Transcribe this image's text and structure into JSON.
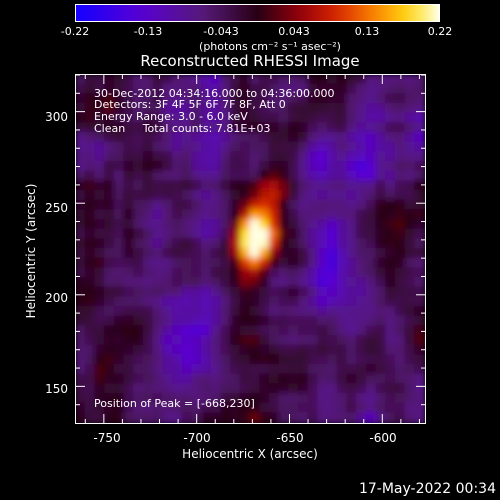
{
  "colorbar": {
    "tick_labels": [
      "-0.22",
      "-0.13",
      "-0.043",
      "0.043",
      "0.13",
      "0.22"
    ],
    "unit_label": "(photons cm⁻² s⁻¹ asec⁻²)",
    "vmin": -0.22,
    "vmax": 0.22
  },
  "title": "Reconstructed RHESSI Image",
  "annotations": {
    "time_range": "30-Dec-2012 04:34:16.000 to 04:36:00.000",
    "detectors": "Detectors: 3F 4F 5F 6F 7F 8F, Att 0",
    "energy_range": "Energy Range: 3.0 - 6.0 keV",
    "method_counts": "Clean     Total counts: 7.81E+03",
    "peak_position": "Position of Peak = [-668,230]"
  },
  "chart_data": {
    "type": "heatmap",
    "title": "Reconstructed RHESSI Image",
    "xlabel": "Heliocentric X (arcsec)",
    "ylabel": "Heliocentric Y (arcsec)",
    "xlim": [
      -765,
      -577
    ],
    "ylim": [
      130,
      320
    ],
    "xticks": [
      -750,
      -700,
      -650,
      -600
    ],
    "yticks": [
      150,
      200,
      250,
      300
    ],
    "peak": {
      "x": -668,
      "y": 230
    },
    "colorscale": "RHESSI blue-purple-red-yellow-white",
    "value_range": [
      -0.22,
      0.22
    ]
  },
  "timestamp": "17-May-2022 00:34"
}
